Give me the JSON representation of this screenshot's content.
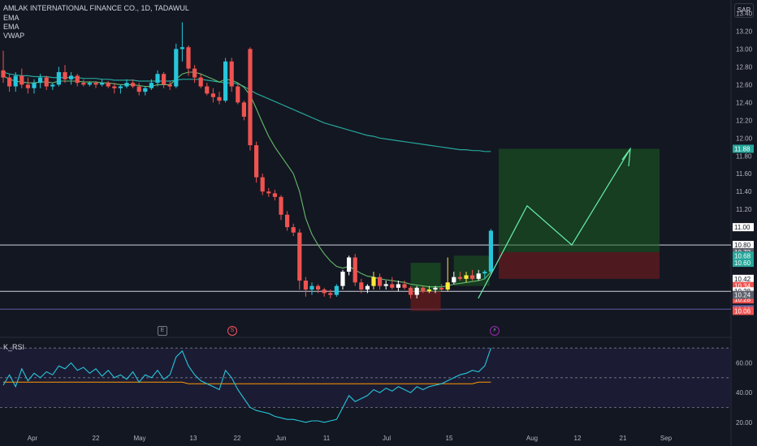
{
  "header": {
    "symbol_line": "AMLAK INTERNATIONAL FINANCE CO., 1D, TADAWUL",
    "indicators": [
      "EMA",
      "EMA",
      "VWAP"
    ],
    "currency": "SAR"
  },
  "rsi_title": "K_RSI",
  "events": [
    {
      "label": "E",
      "color": "#9598a1"
    },
    {
      "label": "S",
      "color": "#f7525f"
    },
    {
      "label": "⚡",
      "color": "#9c27b0"
    }
  ],
  "colors": {
    "up": "#26c6da",
    "down": "#ef5350",
    "bg": "#131722",
    "green_zone": "#1b5e20",
    "red_zone": "#7f1d1d"
  },
  "chart_data": {
    "type": "candlestick",
    "price_ticks": [
      "13.40",
      "13.20",
      "13.00",
      "12.80",
      "12.60",
      "12.40",
      "12.20",
      "12.00",
      "11.80",
      "11.60",
      "11.40",
      "11.20",
      "11.00",
      "10.80",
      "10.60",
      "10.40",
      "10.20"
    ],
    "price_range": [
      10.0,
      13.55
    ],
    "x_ticks": [
      "Apr",
      "22",
      "May",
      "13",
      "22",
      "Jun",
      "11",
      "Jul",
      "15",
      "Aug",
      "12",
      "21",
      "Sep"
    ],
    "rsi_ticks": [
      "60.00",
      "40.00",
      "20.00"
    ],
    "rsi_range": [
      15,
      75
    ],
    "price_labels": [
      {
        "text": "11.88",
        "value": 11.88,
        "bg": "#26a69a"
      },
      {
        "text": "11.00",
        "value": 11.0,
        "bg": "#ffffff"
      },
      {
        "text": "10.80",
        "value": 10.8,
        "bg": "#ffffff"
      },
      {
        "text": "10.72",
        "value": 10.72,
        "bg": "#5d606b"
      },
      {
        "text": "10.68",
        "value": 10.68,
        "bg": "#26a69a"
      },
      {
        "text": "10.60",
        "value": 10.6,
        "bg": "#26a69a"
      },
      {
        "text": "10.42",
        "value": 10.42,
        "bg": "#ffffff"
      },
      {
        "text": "10.34",
        "value": 10.34,
        "bg": "#ef5350"
      },
      {
        "text": "10.28",
        "value": 10.28,
        "bg": "#ffffff"
      },
      {
        "text": "10.28",
        "value": 10.28,
        "bg": "#ef5350"
      },
      {
        "text": "10.24",
        "value": 10.24,
        "bg": "#5d606b"
      },
      {
        "text": "10.08",
        "value": 10.08,
        "bg": "#5d5d9e"
      },
      {
        "text": "10.06",
        "value": 10.06,
        "bg": "#ef5350"
      }
    ],
    "candles": [
      [
        12.76,
        12.98,
        12.62,
        12.68
      ],
      [
        12.68,
        12.72,
        12.52,
        12.58
      ],
      [
        12.58,
        12.74,
        12.52,
        12.7
      ],
      [
        12.7,
        12.78,
        12.56,
        12.6
      ],
      [
        12.6,
        12.68,
        12.5,
        12.56
      ],
      [
        12.56,
        12.66,
        12.5,
        12.62
      ],
      [
        12.62,
        12.72,
        12.56,
        12.68
      ],
      [
        12.68,
        12.7,
        12.54,
        12.58
      ],
      [
        12.58,
        12.62,
        12.54,
        12.6
      ],
      [
        12.6,
        12.8,
        12.58,
        12.74
      ],
      [
        12.74,
        12.82,
        12.62,
        12.66
      ],
      [
        12.66,
        12.74,
        12.6,
        12.7
      ],
      [
        12.7,
        12.72,
        12.58,
        12.62
      ],
      [
        12.62,
        12.66,
        12.58,
        12.6
      ],
      [
        12.6,
        12.64,
        12.58,
        12.62
      ],
      [
        12.62,
        12.64,
        12.56,
        12.6
      ],
      [
        12.6,
        12.66,
        12.58,
        12.62
      ],
      [
        12.62,
        12.64,
        12.56,
        12.58
      ],
      [
        12.58,
        12.62,
        12.5,
        12.56
      ],
      [
        12.56,
        12.6,
        12.5,
        12.58
      ],
      [
        12.58,
        12.66,
        12.56,
        12.62
      ],
      [
        12.62,
        12.66,
        12.56,
        12.58
      ],
      [
        12.58,
        12.62,
        12.48,
        12.52
      ],
      [
        12.52,
        12.58,
        12.48,
        12.56
      ],
      [
        12.56,
        12.66,
        12.54,
        12.62
      ],
      [
        12.62,
        12.76,
        12.58,
        12.72
      ],
      [
        12.72,
        12.74,
        12.56,
        12.6
      ],
      [
        12.6,
        12.64,
        12.54,
        12.58
      ],
      [
        12.58,
        13.06,
        12.56,
        13.0
      ],
      [
        13.0,
        13.3,
        12.86,
        13.02
      ],
      [
        13.02,
        13.04,
        12.7,
        12.78
      ],
      [
        12.78,
        12.82,
        12.62,
        12.68
      ],
      [
        12.68,
        12.72,
        12.56,
        12.58
      ],
      [
        12.58,
        12.62,
        12.48,
        12.5
      ],
      [
        12.5,
        12.56,
        12.4,
        12.46
      ],
      [
        12.46,
        12.52,
        12.38,
        12.42
      ],
      [
        12.42,
        12.9,
        12.4,
        12.86
      ],
      [
        12.86,
        12.9,
        12.52,
        12.58
      ],
      [
        12.58,
        12.62,
        12.38,
        12.4
      ],
      [
        12.4,
        12.42,
        12.2,
        12.24
      ],
      [
        13.0,
        13.02,
        11.86,
        11.92
      ],
      [
        11.92,
        11.96,
        11.5,
        11.56
      ],
      [
        11.56,
        11.6,
        11.36,
        11.4
      ],
      [
        11.4,
        11.44,
        11.34,
        11.38
      ],
      [
        11.38,
        11.42,
        11.3,
        11.34
      ],
      [
        11.34,
        11.36,
        11.08,
        11.14
      ],
      [
        11.14,
        11.18,
        10.96,
        11.0
      ],
      [
        11.0,
        11.04,
        10.9,
        10.94
      ],
      [
        10.94,
        10.98,
        10.3,
        10.4
      ],
      [
        10.4,
        10.44,
        10.22,
        10.3
      ],
      [
        10.3,
        10.38,
        10.24,
        10.34
      ],
      [
        10.34,
        10.36,
        10.26,
        10.3
      ],
      [
        10.3,
        10.32,
        10.22,
        10.26
      ],
      [
        10.26,
        10.3,
        10.2,
        10.24
      ],
      [
        10.24,
        10.36,
        10.22,
        10.34
      ],
      [
        10.34,
        10.52,
        10.3,
        10.5
      ],
      [
        10.5,
        10.68,
        10.46,
        10.66
      ],
      [
        10.66,
        10.7,
        10.34,
        10.38
      ],
      [
        10.38,
        10.42,
        10.26,
        10.3
      ],
      [
        10.3,
        10.36,
        10.26,
        10.34
      ],
      [
        10.34,
        10.5,
        10.3,
        10.44
      ],
      [
        10.44,
        10.48,
        10.3,
        10.34
      ],
      [
        10.34,
        10.4,
        10.3,
        10.36
      ],
      [
        10.36,
        10.44,
        10.3,
        10.32
      ],
      [
        10.32,
        10.4,
        10.28,
        10.36
      ],
      [
        10.36,
        10.4,
        10.3,
        10.32
      ],
      [
        10.32,
        10.34,
        10.2,
        10.24
      ],
      [
        10.24,
        10.34,
        10.2,
        10.32
      ],
      [
        10.32,
        10.34,
        10.26,
        10.28
      ],
      [
        10.28,
        10.34,
        10.26,
        10.3
      ],
      [
        10.3,
        10.34,
        10.26,
        10.32
      ],
      [
        10.32,
        10.36,
        10.28,
        10.3
      ],
      [
        10.3,
        10.66,
        10.28,
        10.38
      ],
      [
        10.38,
        10.5,
        10.36,
        10.44
      ],
      [
        10.44,
        10.5,
        10.4,
        10.42
      ],
      [
        10.42,
        10.5,
        10.38,
        10.46
      ],
      [
        10.46,
        10.52,
        10.4,
        10.42
      ],
      [
        10.42,
        10.52,
        10.4,
        10.48
      ],
      [
        10.48,
        10.52,
        10.42,
        10.5
      ],
      [
        10.5,
        10.98,
        10.46,
        10.96
      ]
    ],
    "ema_fast": [
      12.7,
      12.66,
      12.64,
      12.63,
      12.62,
      12.62,
      12.63,
      12.63,
      12.62,
      12.64,
      12.64,
      12.64,
      12.64,
      12.63,
      12.63,
      12.63,
      12.62,
      12.62,
      12.61,
      12.6,
      12.6,
      12.6,
      12.59,
      12.58,
      12.58,
      12.6,
      12.6,
      12.6,
      12.66,
      12.72,
      12.74,
      12.74,
      12.72,
      12.69,
      12.66,
      12.63,
      12.66,
      12.65,
      12.62,
      12.57,
      12.48,
      12.33,
      12.17,
      12.02,
      11.9,
      11.8,
      11.7,
      11.6,
      11.4,
      11.1,
      10.92,
      10.8,
      10.7,
      10.62,
      10.56,
      10.54,
      10.56,
      10.52,
      10.48,
      10.45,
      10.44,
      10.42,
      10.41,
      10.4,
      10.39,
      10.38,
      10.36,
      10.35,
      10.34,
      10.33,
      10.33,
      10.33,
      10.34,
      10.36,
      10.37,
      10.38,
      10.39,
      10.4,
      10.42,
      10.5
    ],
    "ema_slow": [
      12.74,
      12.72,
      12.71,
      12.7,
      12.7,
      12.69,
      12.69,
      12.69,
      12.68,
      12.68,
      12.68,
      12.68,
      12.68,
      12.67,
      12.67,
      12.67,
      12.66,
      12.66,
      12.65,
      12.65,
      12.65,
      12.65,
      12.64,
      12.64,
      12.64,
      12.64,
      12.64,
      12.64,
      12.65,
      12.66,
      12.66,
      12.66,
      12.66,
      12.65,
      12.64,
      12.63,
      12.62,
      12.62,
      12.61,
      12.58,
      12.54,
      12.5,
      12.47,
      12.44,
      12.41,
      12.38,
      12.35,
      12.32,
      12.29,
      12.26,
      12.23,
      12.2,
      12.17,
      12.15,
      12.13,
      12.11,
      12.09,
      12.07,
      12.05,
      12.03,
      12.02,
      12.0,
      11.99,
      11.98,
      11.97,
      11.96,
      11.95,
      11.94,
      11.93,
      11.92,
      11.91,
      11.9,
      11.89,
      11.88,
      11.87,
      11.87,
      11.86,
      11.86,
      11.85,
      11.85
    ],
    "rsi": [
      45,
      52,
      44,
      56,
      48,
      53,
      50,
      54,
      52,
      58,
      56,
      60,
      55,
      57,
      53,
      56,
      51,
      55,
      50,
      52,
      49,
      54,
      47,
      52,
      50,
      55,
      49,
      52,
      64,
      68,
      58,
      52,
      48,
      46,
      44,
      42,
      55,
      50,
      42,
      36,
      30,
      28,
      27,
      26,
      24,
      23,
      22,
      22,
      21,
      20,
      21,
      21,
      20,
      21,
      22,
      30,
      38,
      34,
      36,
      38,
      42,
      40,
      43,
      41,
      44,
      42,
      40,
      44,
      42,
      44,
      45,
      46,
      48,
      50,
      52,
      53,
      55,
      54,
      58,
      70
    ],
    "rsi_signal": [
      47,
      47,
      47,
      47,
      47,
      47,
      47,
      47,
      47,
      47,
      47,
      47,
      47,
      47,
      47,
      47,
      47,
      47,
      47,
      47,
      47,
      47,
      47,
      47,
      47,
      47,
      47,
      47,
      47,
      47,
      46,
      46,
      46,
      46,
      46,
      46,
      46,
      46,
      46,
      46,
      46,
      46,
      46,
      46,
      46,
      46,
      46,
      46,
      46,
      46,
      46,
      46,
      46,
      46,
      46,
      46,
      46,
      46,
      46,
      46,
      46,
      46,
      46,
      46,
      46,
      46,
      46,
      46,
      46,
      46,
      46,
      46,
      46,
      46,
      46,
      46,
      46,
      47,
      47,
      47
    ],
    "rsi_levels": [
      70,
      50,
      30
    ]
  }
}
